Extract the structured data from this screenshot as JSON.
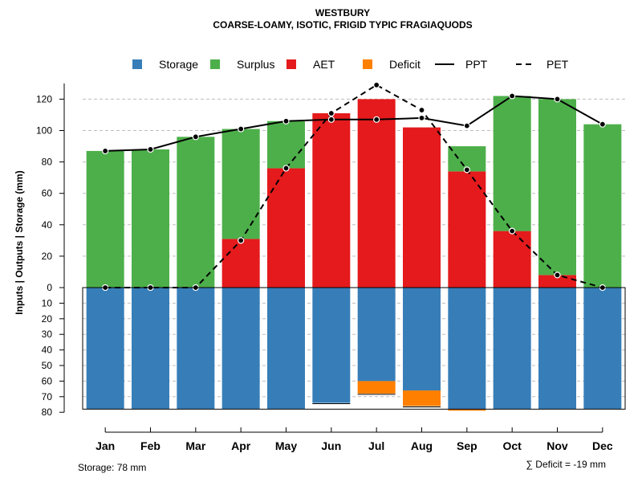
{
  "chart_data": {
    "type": "bar",
    "title": "WESTBURY",
    "subtitle": "COARSE-LOAMY, ISOTIC, FRIGID TYPIC FRAGIAQUODS",
    "ylabel": "Inputs | Outputs | Storage    (mm)",
    "ylim_upper": [
      0,
      130
    ],
    "ylim_lower": [
      0,
      80
    ],
    "upper_ticks": [
      "0",
      "20",
      "40",
      "60",
      "80",
      "100",
      "120"
    ],
    "lower_ticks": [
      "10",
      "20",
      "30",
      "40",
      "50",
      "60",
      "70",
      "80"
    ],
    "categories": [
      "Jan",
      "Feb",
      "Mar",
      "Apr",
      "May",
      "Jun",
      "Jul",
      "Aug",
      "Sep",
      "Oct",
      "Nov",
      "Dec"
    ],
    "legend": [
      {
        "label": "Storage",
        "kind": "box",
        "color": "#377EB8"
      },
      {
        "label": "Surplus",
        "kind": "box",
        "color": "#4DAF4A"
      },
      {
        "label": "AET",
        "kind": "box",
        "color": "#E41A1C"
      },
      {
        "label": "Deficit",
        "kind": "box",
        "color": "#FF7F00"
      },
      {
        "label": "PPT",
        "kind": "solid",
        "color": "#000000"
      },
      {
        "label": "PET",
        "kind": "dashed",
        "color": "#000000"
      }
    ],
    "series": [
      {
        "name": "AET",
        "color": "#E41A1C",
        "values": [
          0,
          0,
          0,
          31,
          76,
          111,
          120,
          102,
          74,
          36,
          8,
          0
        ]
      },
      {
        "name": "Surplus",
        "color": "#4DAF4A",
        "values": [
          87,
          88,
          96,
          70,
          30,
          0,
          0,
          0,
          16,
          86,
          112,
          104
        ]
      },
      {
        "name": "Storage",
        "color": "#377EB8",
        "values": [
          78,
          78,
          78,
          78,
          78,
          74,
          60,
          66,
          78,
          78,
          78,
          78
        ]
      },
      {
        "name": "Deficit",
        "color": "#FF7F00",
        "values": [
          0,
          0,
          0,
          0,
          0,
          0,
          8,
          10,
          1,
          0,
          0,
          0
        ]
      },
      {
        "name": "PPT",
        "color": "#000000",
        "values": [
          87,
          88,
          96,
          101,
          106,
          107,
          107,
          108,
          103,
          122,
          120,
          104
        ]
      },
      {
        "name": "PET",
        "color": "#000000",
        "values": [
          0,
          0,
          0,
          30,
          76,
          111,
          129,
          113,
          75,
          36,
          8,
          0
        ]
      }
    ],
    "footer_left": "Storage: 78 mm",
    "footer_right": "∑ Deficit = -19 mm"
  }
}
